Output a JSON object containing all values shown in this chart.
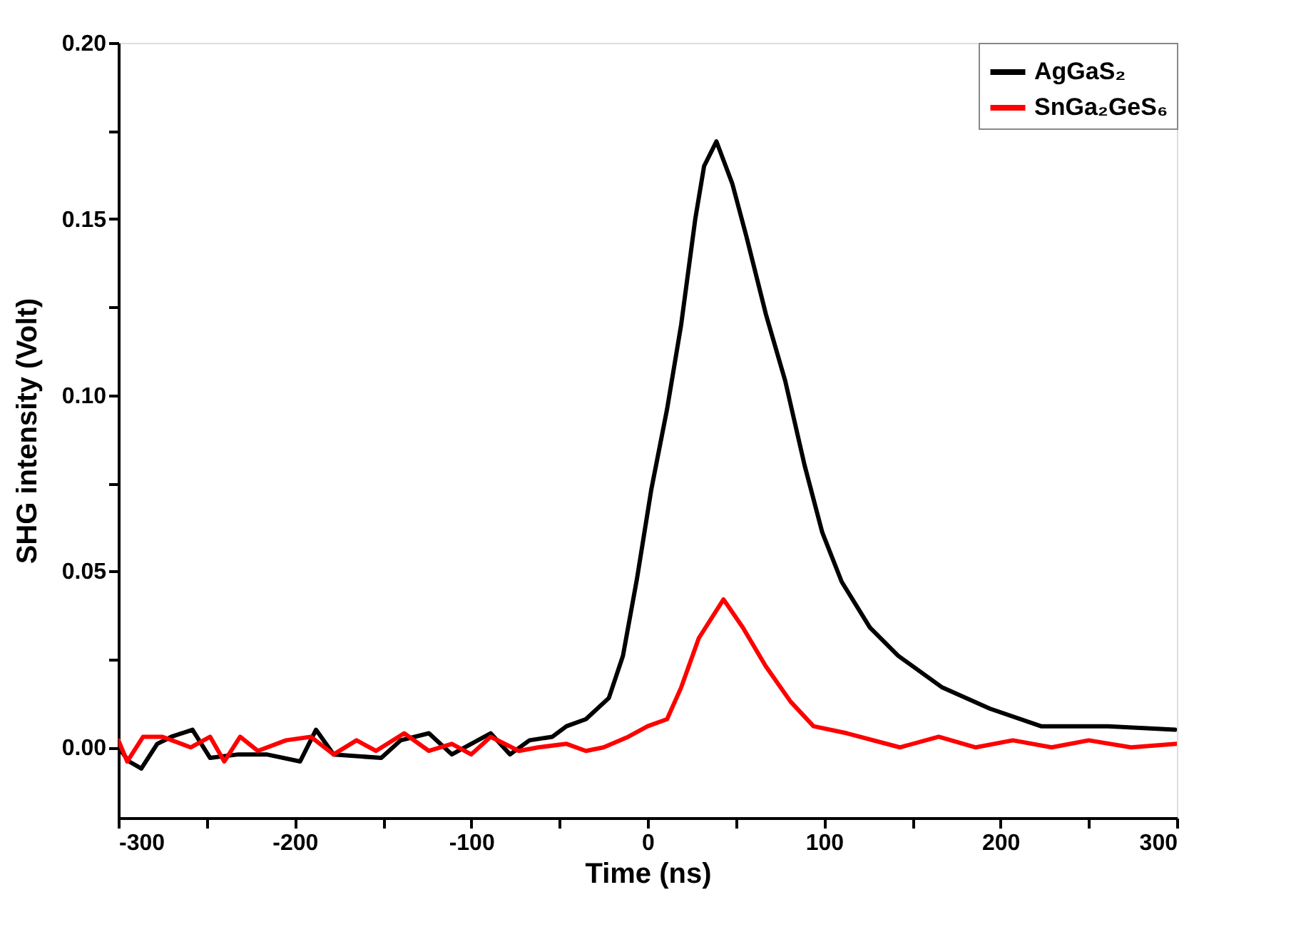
{
  "chart_data": {
    "type": "line",
    "xlabel": "Time (ns)",
    "ylabel": "SHG intensity (Volt)",
    "xlim": [
      -300,
      300
    ],
    "ylim": [
      -0.02,
      0.2
    ],
    "xticks": [
      -300,
      {
        "value": -250,
        "label": null
      },
      -200,
      {
        "value": -150,
        "label": null
      },
      -100,
      {
        "value": -50,
        "label": null
      },
      0,
      {
        "value": 50,
        "label": null
      },
      100,
      {
        "value": 150,
        "label": null
      },
      200,
      {
        "value": 250,
        "label": null
      },
      300
    ],
    "yticks": [
      {
        "value": 0,
        "label": "0.00"
      },
      {
        "value": 0.025,
        "label": null
      },
      {
        "value": 0.05,
        "label": "0.05"
      },
      {
        "value": 0.075,
        "label": null
      },
      {
        "value": 0.1,
        "label": "0.10"
      },
      {
        "value": 0.125,
        "label": null
      },
      {
        "value": 0.15,
        "label": "0.15"
      },
      {
        "value": 0.175,
        "label": null
      },
      {
        "value": 0.2,
        "label": "0.20"
      }
    ],
    "grid": false,
    "legend": "top right",
    "marker": "none",
    "line_style": "solid",
    "series": [
      {
        "name": "AgGaS₂",
        "color": "#000000",
        "x": [
          -300,
          -294,
          -287,
          -278,
          -270,
          -258,
          -248,
          -232,
          -216,
          -197,
          -188,
          -178,
          -151,
          -140,
          -124,
          -111,
          -89,
          -78,
          -67,
          -54,
          -46,
          -35,
          -22,
          -14,
          -6,
          2,
          11,
          19,
          27,
          32,
          39,
          48,
          56,
          67,
          78,
          89,
          99,
          110,
          126,
          142,
          167,
          194,
          223,
          261,
          299
        ],
        "values": [
          0.0,
          -0.004,
          -0.006,
          0.001,
          0.003,
          0.005,
          -0.003,
          -0.002,
          -0.002,
          -0.004,
          0.005,
          -0.002,
          -0.003,
          0.002,
          0.004,
          -0.002,
          0.004,
          -0.002,
          0.002,
          0.003,
          0.006,
          0.008,
          0.014,
          0.026,
          0.048,
          0.073,
          0.096,
          0.12,
          0.15,
          0.165,
          0.172,
          0.16,
          0.145,
          0.123,
          0.104,
          0.08,
          0.061,
          0.047,
          0.034,
          0.026,
          0.017,
          0.011,
          0.006,
          0.006,
          0.005
        ]
      },
      {
        "name": "SnGa₂GeS₆",
        "color": "#ff0000",
        "x": [
          -300,
          -295,
          -286,
          -275,
          -259,
          -248,
          -240,
          -231,
          -221,
          -205,
          -191,
          -178,
          -165,
          -154,
          -138,
          -124,
          -111,
          -100,
          -89,
          -73,
          -62,
          -46,
          -35,
          -25,
          -11,
          0,
          11,
          19,
          29,
          43,
          54,
          67,
          81,
          94,
          113,
          143,
          165,
          186,
          207,
          229,
          250,
          274,
          300
        ],
        "values": [
          0.002,
          -0.004,
          0.003,
          0.003,
          0.0,
          0.003,
          -0.004,
          0.003,
          -0.001,
          0.002,
          0.003,
          -0.002,
          0.002,
          -0.001,
          0.004,
          -0.001,
          0.001,
          -0.002,
          0.003,
          -0.001,
          0.0,
          0.001,
          -0.001,
          0.0,
          0.003,
          0.006,
          0.008,
          0.017,
          0.031,
          0.042,
          0.034,
          0.023,
          0.013,
          0.006,
          0.004,
          0.0,
          0.003,
          0.0,
          0.002,
          0.0,
          0.002,
          0.0,
          0.001
        ]
      }
    ]
  }
}
